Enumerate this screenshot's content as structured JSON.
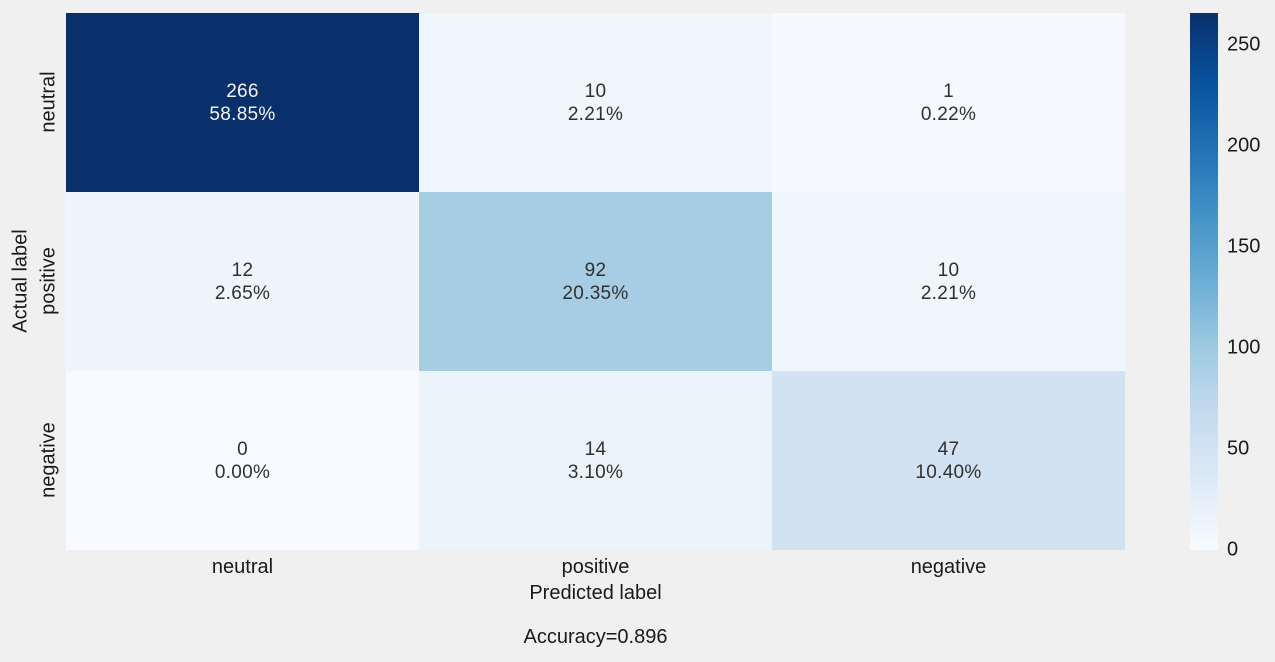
{
  "background_color": "#f0f0f0",
  "chart_data": {
    "type": "heatmap",
    "subtype": "confusion-matrix",
    "title": "",
    "xlabel": "Predicted label",
    "ylabel": "Actual label",
    "x_categories": [
      "neutral",
      "positive",
      "negative"
    ],
    "y_categories": [
      "neutral",
      "positive",
      "negative"
    ],
    "counts": [
      [
        266,
        10,
        1
      ],
      [
        12,
        92,
        10
      ],
      [
        0,
        14,
        47
      ]
    ],
    "percents": [
      [
        58.85,
        2.21,
        0.22
      ],
      [
        2.65,
        20.35,
        2.21
      ],
      [
        0.0,
        3.1,
        10.4
      ]
    ],
    "vmin": 0,
    "vmax": 266,
    "colormap": "Blues",
    "grid": false,
    "accuracy_label": "Accuracy=0.896",
    "cells": [
      {
        "row": "neutral",
        "col": "neutral",
        "count": "266",
        "percent": "58.85%",
        "color": "#09306a",
        "text_color": "#f5f5f5"
      },
      {
        "row": "neutral",
        "col": "positive",
        "count": "10",
        "percent": "2.21%",
        "color": "#eff6fc",
        "text_color": "#303030"
      },
      {
        "row": "neutral",
        "col": "negative",
        "count": "1",
        "percent": "0.22%",
        "color": "#f6fafe",
        "text_color": "#303030"
      },
      {
        "row": "positive",
        "col": "neutral",
        "count": "12",
        "percent": "2.65%",
        "color": "#eef5fc",
        "text_color": "#303030"
      },
      {
        "row": "positive",
        "col": "positive",
        "count": "92",
        "percent": "20.35%",
        "color": "#a6cde3",
        "text_color": "#303030"
      },
      {
        "row": "positive",
        "col": "negative",
        "count": "10",
        "percent": "2.21%",
        "color": "#eff6fc",
        "text_color": "#303030"
      },
      {
        "row": "negative",
        "col": "neutral",
        "count": "0",
        "percent": "0.00%",
        "color": "#f7fbff",
        "text_color": "#303030"
      },
      {
        "row": "negative",
        "col": "positive",
        "count": "14",
        "percent": "3.10%",
        "color": "#ecf4fb",
        "text_color": "#303030"
      },
      {
        "row": "negative",
        "col": "negative",
        "count": "47",
        "percent": "10.40%",
        "color": "#d3e2f2",
        "text_color": "#303030"
      }
    ],
    "colorbar": {
      "position": "right",
      "ticks": [
        0,
        50,
        100,
        150,
        200,
        250
      ],
      "gradient_stops_bottom_to_top": [
        "#f7fbff",
        "#deebf7",
        "#c6dbef",
        "#9ecae1",
        "#6baed6",
        "#4292c6",
        "#2171b5",
        "#08519c",
        "#08306b"
      ]
    }
  }
}
